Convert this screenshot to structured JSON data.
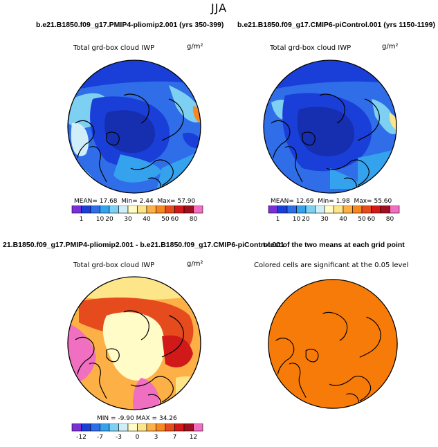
{
  "title": "JJA",
  "panels": [
    {
      "header": "b.e21.B1850.f09_g17.PMIP4-pliomip2.001 (yrs 350-399)",
      "var_label": "Total grd-box cloud IWP",
      "units": "g/m²",
      "stats": {
        "mean_label": "MEAN=",
        "mean": "17.68",
        "min_label": "Min=",
        "min": "2.44",
        "max_label": "Max=",
        "max": "57.90"
      }
    },
    {
      "header": "b.e21.B1850.f09_g17.CMIP6-piControl.001 (yrs 1150-1199)",
      "var_label": "Total grd-box cloud IWP",
      "units": "g/m²",
      "stats": {
        "mean_label": "MEAN=",
        "mean": "12.69",
        "min_label": "Min=",
        "min": "1.98",
        "max_label": "Max=",
        "max": "55.60"
      }
    },
    {
      "header": "21.B1850.f09_g17.PMIP4-pliomip2.001 - b.e21.B1850.f09_g17.CMIP6-piControl.001",
      "var_label": "Total grd-box cloud IWP",
      "units": "g/m²",
      "stats": {
        "min_label": "MIN =",
        "min": "-9.90",
        "max_label": "MAX =",
        "max": "34.26"
      }
    },
    {
      "header": "t-test of the two means at each grid point",
      "var_label": "Colored cells are significant at the 0.05 level"
    }
  ],
  "colorbar_abs": {
    "labels": [
      "1",
      "10",
      "20",
      "30",
      "40",
      "50",
      "60",
      "80"
    ],
    "colors": [
      "#7b2fd6",
      "#1a3fd9",
      "#2f6ee8",
      "#35a2ee",
      "#7ed0f2",
      "#cfeef7",
      "#fffcc8",
      "#fde58a",
      "#fdb046",
      "#f7881f",
      "#e64b1e",
      "#d11919",
      "#9e0f1f",
      "#f06fc0"
    ]
  },
  "colorbar_diff": {
    "labels": [
      "-12",
      "-7",
      "-3",
      "0",
      "3",
      "7",
      "12"
    ],
    "colors": [
      "#7b2fd6",
      "#1a3fd9",
      "#2f6ee8",
      "#35a2ee",
      "#7ed0f2",
      "#cfeef7",
      "#fffcc8",
      "#fde58a",
      "#fdb046",
      "#f7881f",
      "#e64b1e",
      "#d11919",
      "#9e0f1f",
      "#f06fc0"
    ]
  },
  "significance_color": "#f77b09"
}
